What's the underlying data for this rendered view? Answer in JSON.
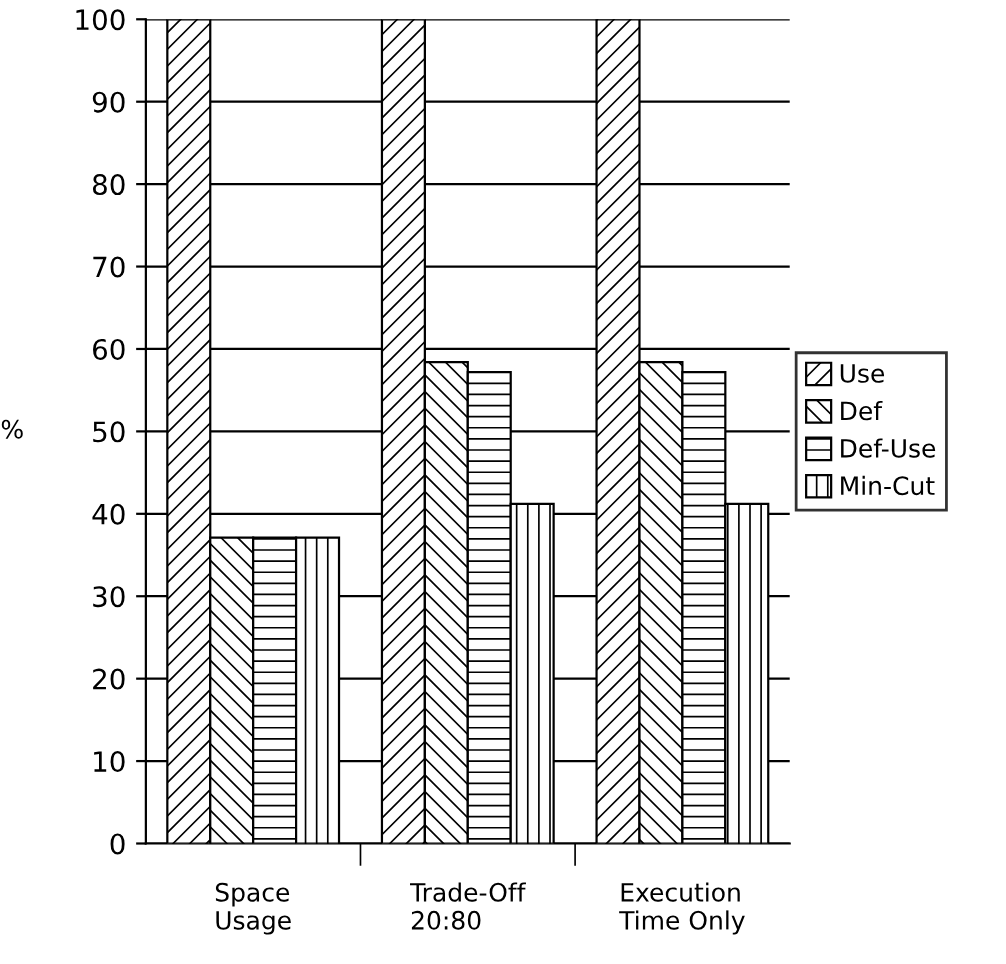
{
  "chart_data": {
    "type": "bar",
    "ylabel": "%",
    "categories": [
      "Space\nUsage",
      "Trade-Off\n20:80",
      "Execution\nTime Only"
    ],
    "series": [
      {
        "name": "Use",
        "color": "#000000",
        "values": [
          100,
          100,
          100
        ]
      },
      {
        "name": "Def",
        "color": "#000000",
        "values": [
          37.1,
          58.4,
          58.4
        ]
      },
      {
        "name": "Def-Use",
        "color": "#000000",
        "values": [
          37.1,
          57.2,
          57.2
        ]
      },
      {
        "name": "Min-Cut",
        "color": "#000000",
        "values": [
          37.1,
          41.2,
          41.2
        ]
      }
    ],
    "ylim": [
      0,
      100
    ],
    "yticks": [
      0,
      10,
      20,
      30,
      40,
      50,
      60,
      70,
      80,
      90,
      100
    ],
    "grid": "y",
    "legend": "right"
  }
}
